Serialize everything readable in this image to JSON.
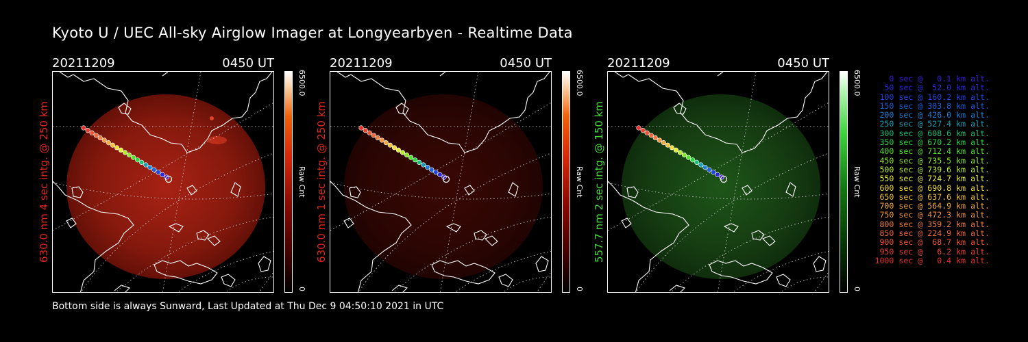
{
  "title": "Kyoto U / UEC All-sky Airglow Imager at Longyearbyen - Realtime Data",
  "footer": "Bottom side is always Sunward, Last Updated at Thu Dec  9 04:50:10 2021 in UTC",
  "panels": [
    {
      "date": "20211209",
      "time": "0450 UT",
      "label": "630.0 nm 4 sec intg. @ 250 km",
      "label_color": "#e3261c",
      "cbar_max": "6500.0",
      "cbar_unit": "Raw Cnt",
      "cbar_min": "0",
      "cmap": "red",
      "glow": "bright-red"
    },
    {
      "date": "20211209",
      "time": "0450 UT",
      "label": "630.0 nm 1 sec intg. @ 250 km",
      "label_color": "#e3261c",
      "cbar_max": "6500.0",
      "cbar_unit": "Raw Cnt",
      "cbar_min": "0",
      "cmap": "red",
      "glow": "dim-red"
    },
    {
      "date": "20211209",
      "time": "0450 UT",
      "label": "557.7 nm 2 sec intg. @ 150 km",
      "label_color": "#44d93c",
      "cbar_max": "6500.0",
      "cbar_unit": "Raw Cnt",
      "cbar_min": "0",
      "cmap": "green",
      "glow": "green"
    }
  ],
  "legend": [
    {
      "text": "0 sec @   0.1 km alt.",
      "color": "#3a1cd6"
    },
    {
      "text": "50 sec @  52.0 km alt.",
      "color": "#2a2ae0"
    },
    {
      "text": "100 sec @ 160.2 km alt.",
      "color": "#1f46e0"
    },
    {
      "text": "150 sec @ 303.8 km alt.",
      "color": "#1d5fdc"
    },
    {
      "text": "200 sec @ 426.0 km alt.",
      "color": "#1d80d8"
    },
    {
      "text": "250 sec @ 527.4 km alt.",
      "color": "#1aa1b8"
    },
    {
      "text": "300 sec @ 608.6 km alt.",
      "color": "#19c07a"
    },
    {
      "text": "350 sec @ 670.2 km alt.",
      "color": "#2ad840"
    },
    {
      "text": "400 sec @ 712.4 km alt.",
      "color": "#53e42a"
    },
    {
      "text": "450 sec @ 735.5 km alt.",
      "color": "#8ae82a"
    },
    {
      "text": "500 sec @ 739.6 km alt.",
      "color": "#b9ee30"
    },
    {
      "text": "550 sec @ 724.7 km alt.",
      "color": "#e4f034"
    },
    {
      "text": "600 sec @ 690.8 km alt.",
      "color": "#f2dc38"
    },
    {
      "text": "650 sec @ 637.6 km alt.",
      "color": "#f4c33c"
    },
    {
      "text": "700 sec @ 564.9 km alt.",
      "color": "#f4aa3e"
    },
    {
      "text": "750 sec @ 472.3 km alt.",
      "color": "#f39540"
    },
    {
      "text": "800 sec @ 359.2 km alt.",
      "color": "#f27f3f"
    },
    {
      "text": "850 sec @ 224.9 km alt.",
      "color": "#f0683a"
    },
    {
      "text": "900 sec @  68.7 km alt.",
      "color": "#ee5434"
    },
    {
      "text": "950 sec @   6.2 km alt.",
      "color": "#ec422f"
    },
    {
      "text": "1000 sec @   0.4 km alt.",
      "color": "#ea2f2a"
    }
  ]
}
